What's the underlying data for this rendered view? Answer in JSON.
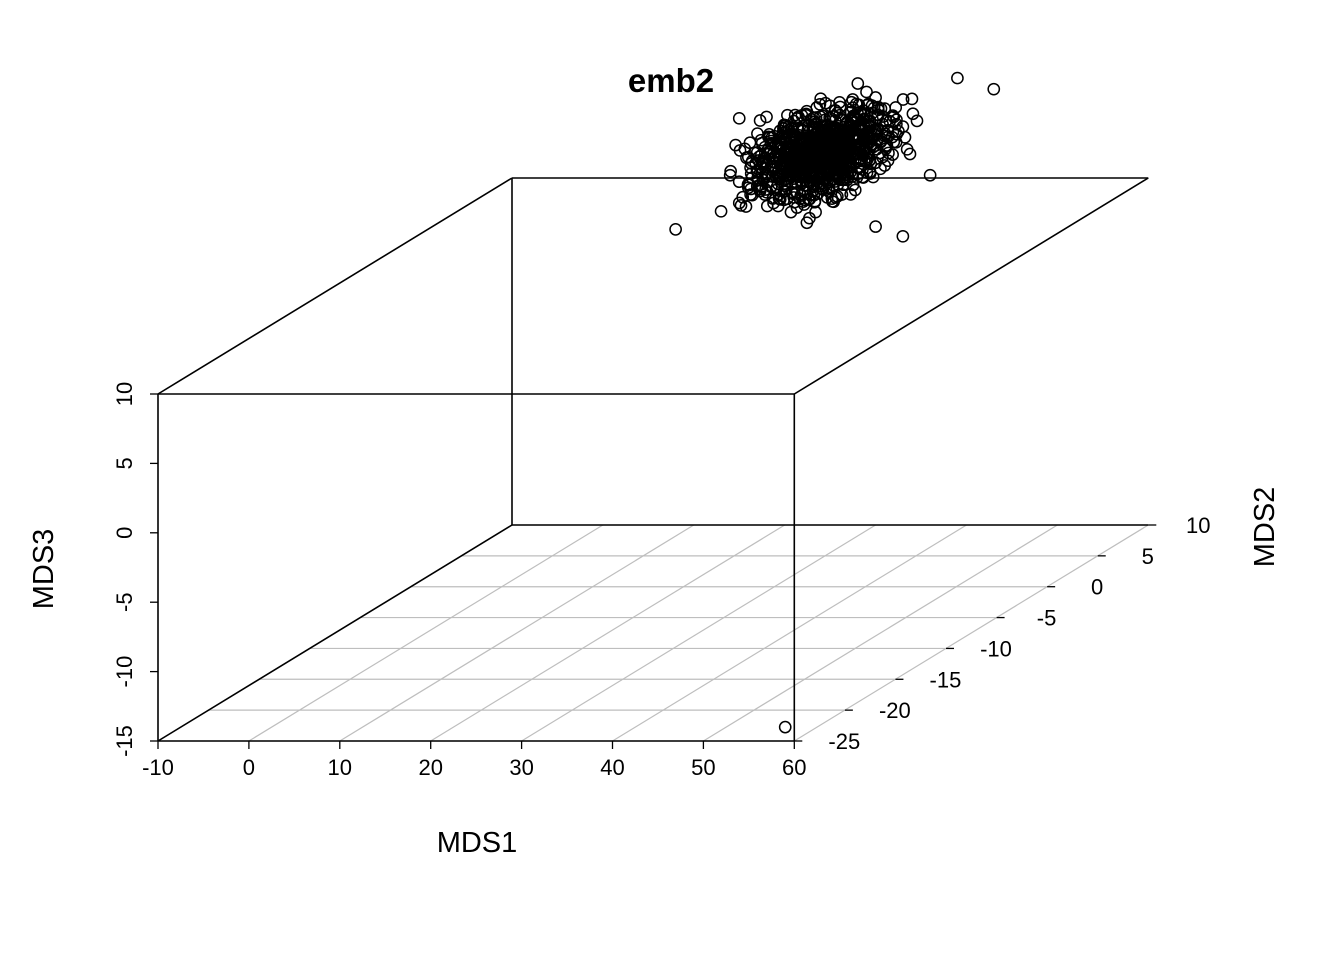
{
  "chart_data": {
    "type": "scatter",
    "subtype": "3d-scatter",
    "title": "emb2",
    "xlabel": "MDS1",
    "ylabel": "MDS2",
    "zlabel": "MDS3",
    "xlim": [
      -10,
      60
    ],
    "ylim": [
      -25,
      10
    ],
    "zlim": [
      -15,
      10
    ],
    "xticks": [
      "-10",
      "0",
      "10",
      "20",
      "30",
      "40",
      "50",
      "60"
    ],
    "yticks": [
      "-25",
      "-20",
      "-15",
      "-10",
      "-5",
      "0",
      "5",
      "10"
    ],
    "zticks": [
      "-15",
      "-10",
      "-5",
      "0",
      "5",
      "10"
    ],
    "grid": "on (base plane)",
    "box": true,
    "marker": "open-circle",
    "point_color": "#000000",
    "grid_color": "#bebebe",
    "points": [
      {
        "x": 59,
        "y": -25,
        "z": -14
      },
      {
        "x": 30,
        "y": 10,
        "z": 6.5
      },
      {
        "x": 33,
        "y": 10,
        "z": 5.8
      },
      {
        "x": 36,
        "y": 10,
        "z": 10.2
      },
      {
        "x": 30,
        "y": 10,
        "z": 11.1
      },
      {
        "x": 15,
        "y": 10,
        "z": 8.2
      },
      {
        "x": 23,
        "y": 9.5,
        "z": 7
      },
      {
        "x": 18,
        "y": 10,
        "z": 10.3
      },
      {
        "x": 8,
        "y": 10,
        "z": 6.3
      },
      {
        "x": 13,
        "y": 10,
        "z": 7.6
      },
      {
        "x": 14,
        "y": 10,
        "z": 10.2
      },
      {
        "x": 15,
        "y": 10,
        "z": 14.3
      },
      {
        "x": 29,
        "y": 10,
        "z": 16.2
      },
      {
        "x": 39,
        "y": 10,
        "z": 17.2
      },
      {
        "x": 43,
        "y": 10,
        "z": 16.4
      },
      {
        "x": 17,
        "y": 10,
        "z": 13.2
      },
      {
        "x": 21,
        "y": 10,
        "z": 14.1
      },
      {
        "x": 25,
        "y": 10,
        "z": 15.2
      },
      {
        "x": 27,
        "y": 10,
        "z": 13.1
      },
      {
        "x": 24,
        "y": 10,
        "z": 11.6
      },
      {
        "x": 26,
        "y": 10,
        "z": 9.9
      },
      {
        "x": 31,
        "y": 10,
        "z": 10.9
      },
      {
        "x": 32,
        "y": 10,
        "z": 12.6
      },
      {
        "x": 32,
        "y": 10,
        "z": 14.4
      },
      {
        "x": 30,
        "y": 10,
        "z": 15.8
      },
      {
        "x": 28,
        "y": 10,
        "z": 14.7
      },
      {
        "x": 26,
        "y": 10,
        "z": 12.5
      },
      {
        "x": 22,
        "y": 10,
        "z": 11.9
      },
      {
        "x": 20,
        "y": 10,
        "z": 9.6
      },
      {
        "x": 19,
        "y": 10,
        "z": 12.3
      },
      {
        "x": 18,
        "y": 10,
        "z": 14.4
      },
      {
        "x": 16,
        "y": 10,
        "z": 11.5
      },
      {
        "x": 16,
        "y": 10,
        "z": 9.3
      },
      {
        "x": 21,
        "y": 10,
        "z": 8.6
      },
      {
        "x": 24,
        "y": 10,
        "z": 9.4
      },
      {
        "x": 27,
        "y": 10,
        "z": 11.4
      },
      {
        "x": 29,
        "y": 10,
        "z": 12.2
      },
      {
        "x": 30,
        "y": 10,
        "z": 13.4
      },
      {
        "x": 33,
        "y": 10,
        "z": 13.7
      },
      {
        "x": 34,
        "y": 10,
        "z": 15.7
      },
      {
        "x": 31,
        "y": 10,
        "z": 15
      }
    ]
  }
}
